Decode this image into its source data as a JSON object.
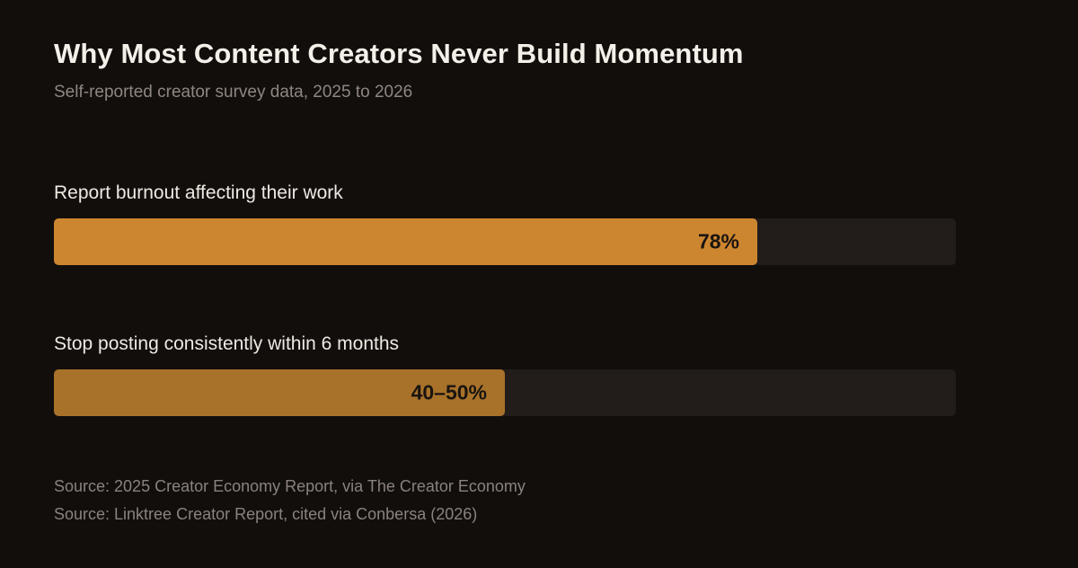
{
  "chart_data": {
    "type": "bar",
    "orientation": "horizontal",
    "title": "Why Most Content Creators Never Build Momentum",
    "subtitle": "Self-reported creator survey data, 2025 to 2026",
    "xlim": [
      0,
      100
    ],
    "grid": false,
    "categories": [
      "Report burnout affecting their work",
      "Stop posting consistently within 6 months"
    ],
    "values": [
      78,
      50
    ],
    "data_labels": [
      "78%",
      "40–50%"
    ],
    "colors": [
      "#cd8630",
      "#a8722a"
    ],
    "track_color": "#221d1a",
    "sources": [
      "Source: 2025 Creator Economy Report, via The Creator Economy",
      "Source: Linktree Creator Report, cited via Conbersa (2026)"
    ]
  }
}
